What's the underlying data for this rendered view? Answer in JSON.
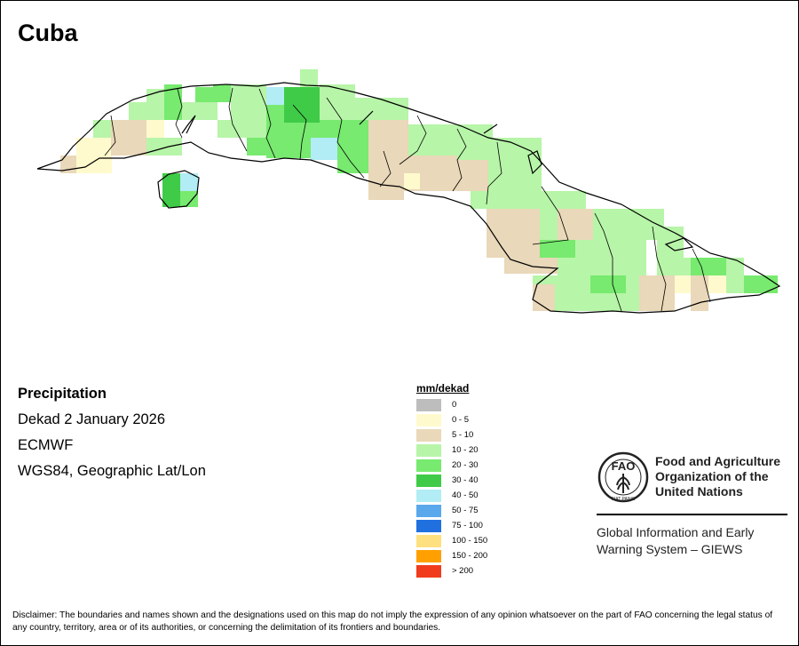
{
  "map": {
    "country": "Cuba",
    "variable": "Precipitation",
    "period": "Dekad 2 January 2026",
    "source": "ECMWF",
    "projection": "WGS84, Geographic Lat/Lon"
  },
  "legend": {
    "unit": "mm/dekad",
    "classes": [
      {
        "label": "0",
        "color": "#bdbdbd"
      },
      {
        "label": "0 - 5",
        "color": "#fffacd"
      },
      {
        "label": "5 - 10",
        "color": "#e9d8b9"
      },
      {
        "label": "10 - 20",
        "color": "#b7f5a8"
      },
      {
        "label": "20 - 30",
        "color": "#77ea6f"
      },
      {
        "label": "30 - 40",
        "color": "#3fcb47"
      },
      {
        "label": "40 - 50",
        "color": "#b2ecf4"
      },
      {
        "label": "50 - 75",
        "color": "#5aa8ec"
      },
      {
        "label": "75 - 100",
        "color": "#2070e0"
      },
      {
        "label": "100 - 150",
        "color": "#ffe080"
      },
      {
        "label": "150 - 200",
        "color": "#ffa000"
      },
      {
        "label": "> 200",
        "color": "#f03c1c"
      }
    ]
  },
  "organization": {
    "logo_text": "FAO",
    "logo_motto": "FIAT PANIS",
    "name": [
      "Food and Agriculture",
      "Organization of the",
      "United Nations"
    ],
    "system": [
      "Global Information and Early",
      "Warning System – GIEWS"
    ]
  },
  "disclaimer": "Disclaimer: The boundaries and names shown and the designations used on this map do not imply the expression of any opinion whatsoever on the part of FAO concerning the legal status of any country, territory, area or of its authorities, or concerning the delimitation of its frontiers and boundaries."
}
